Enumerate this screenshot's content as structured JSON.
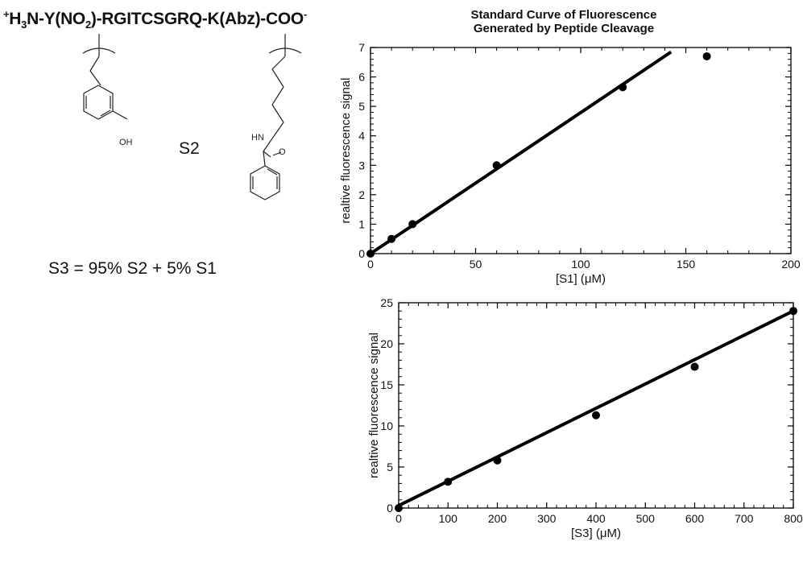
{
  "peptide": {
    "charge": "+",
    "h": "H",
    "sub3": "3",
    "seq1": "N-Y(NO",
    "sub2": "2",
    "seq2": ")-RGITCSGRQ-K(Abz)-COO",
    "minus": "-"
  },
  "structure_labels": {
    "oh": "OH",
    "hn": "HN",
    "o": "O"
  },
  "s2_label": "S2",
  "s3_equation": "S3 = 95% S2 + 5% S1",
  "chart_data": [
    {
      "type": "scatter",
      "title": "Standard Curve of Fluorescence Generated by Peptide Cleavage",
      "title_lines": [
        "Standard Curve of Fluorescence",
        "Generated by Peptide Cleavage"
      ],
      "xlabel": "[S1] (μM)",
      "ylabel": "realtive fluorescence signal",
      "xlim": [
        0,
        200
      ],
      "ylim": [
        0,
        7
      ],
      "xticks": [
        0,
        50,
        100,
        150,
        200
      ],
      "yticks": [
        0,
        1,
        2,
        3,
        4,
        5,
        6,
        7
      ],
      "points": {
        "x": [
          0,
          10,
          20,
          60,
          120,
          160
        ],
        "y": [
          0,
          0.5,
          1.0,
          3.0,
          5.65,
          6.7
        ]
      },
      "fit_line": {
        "x": [
          0,
          143
        ],
        "y": [
          0,
          6.85
        ]
      },
      "grid": false,
      "color": "#000000"
    },
    {
      "type": "scatter",
      "title": "",
      "xlabel": "[S3] (μM)",
      "ylabel": "realtive fluorescence signal",
      "xlim": [
        0,
        800
      ],
      "ylim": [
        0,
        25
      ],
      "xticks": [
        0,
        100,
        200,
        300,
        400,
        500,
        600,
        700,
        800
      ],
      "yticks": [
        0,
        5,
        10,
        15,
        20,
        25
      ],
      "points": {
        "x": [
          0,
          100,
          200,
          400,
          600,
          800
        ],
        "y": [
          0,
          3.2,
          5.8,
          11.3,
          17.2,
          24.0
        ]
      },
      "fit_line": {
        "x": [
          0,
          800
        ],
        "y": [
          0.3,
          24.0
        ]
      },
      "grid": false,
      "color": "#000000"
    }
  ]
}
